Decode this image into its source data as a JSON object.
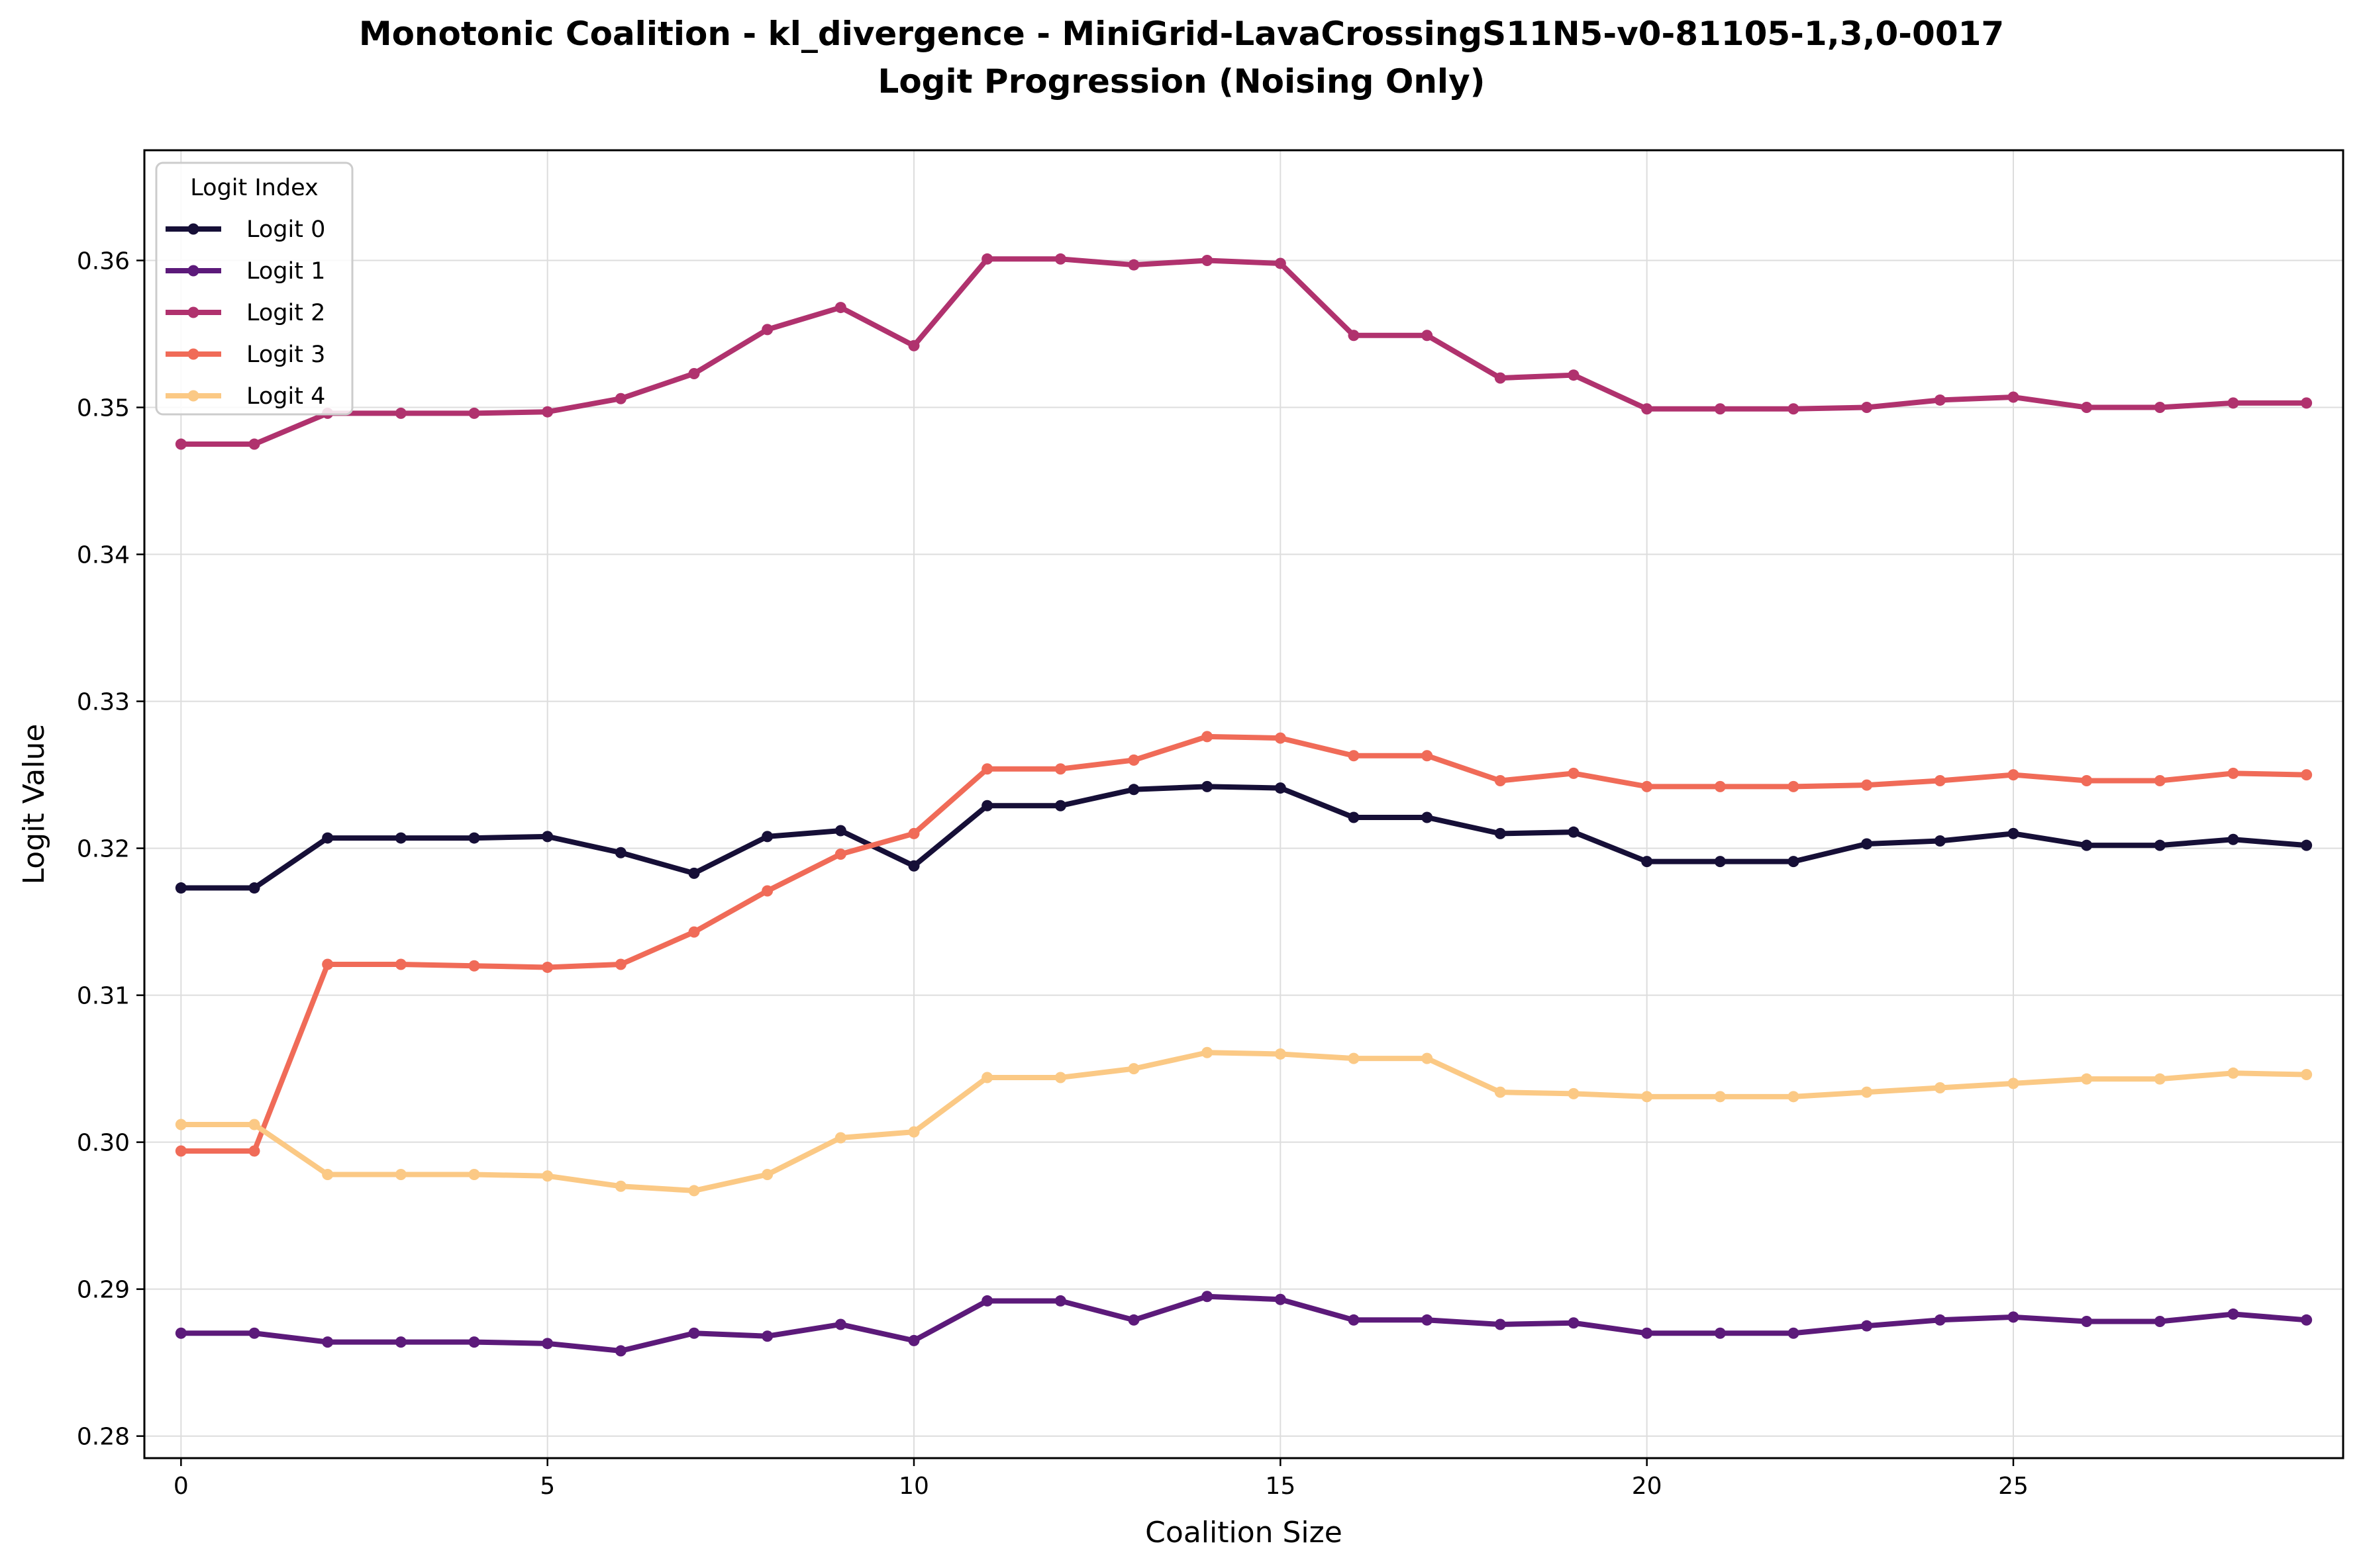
{
  "chart_data": {
    "type": "line",
    "title": "Monotonic Coalition - kl_divergence - MiniGrid-LavaCrossingS11N5-v0-81105-1,3,0-0017",
    "subtitle": "Logit Progression (Noising Only)",
    "xlabel": "Coalition Size",
    "ylabel": "Logit Value",
    "xlim": [
      -0.5,
      29.5
    ],
    "ylim": [
      0.2785,
      0.3675
    ],
    "xticks": [
      0,
      5,
      10,
      15,
      20,
      25
    ],
    "yticks": [
      0.28,
      0.29,
      0.3,
      0.31,
      0.32,
      0.33,
      0.34,
      0.35,
      0.36
    ],
    "ytick_labels": [
      "0.28",
      "0.29",
      "0.30",
      "0.31",
      "0.32",
      "0.33",
      "0.34",
      "0.35",
      "0.36"
    ],
    "grid": true,
    "legend": {
      "title": "Logit Index",
      "position": "top-left"
    },
    "x": [
      0,
      1,
      2,
      3,
      4,
      5,
      6,
      7,
      8,
      9,
      10,
      11,
      12,
      13,
      14,
      15,
      16,
      17,
      18,
      19,
      20,
      21,
      22,
      23,
      24,
      25,
      26,
      27,
      28,
      29
    ],
    "series": [
      {
        "name": "Logit 0",
        "color": "#160f37",
        "values": [
          0.3173,
          0.3173,
          0.3207,
          0.3207,
          0.3207,
          0.3208,
          0.3197,
          0.3183,
          0.3208,
          0.3212,
          0.3188,
          0.3229,
          0.3229,
          0.324,
          0.3242,
          0.3241,
          0.3221,
          0.3221,
          0.321,
          0.3211,
          0.3191,
          0.3191,
          0.3191,
          0.3203,
          0.3205,
          0.321,
          0.3202,
          0.3202,
          0.3206,
          0.3202
        ]
      },
      {
        "name": "Logit 1",
        "color": "#5c1a7a",
        "values": [
          0.287,
          0.287,
          0.2864,
          0.2864,
          0.2864,
          0.2863,
          0.2858,
          0.287,
          0.2868,
          0.2876,
          0.2865,
          0.2892,
          0.2892,
          0.2879,
          0.2895,
          0.2893,
          0.2879,
          0.2879,
          0.2876,
          0.2877,
          0.287,
          0.287,
          0.287,
          0.2875,
          0.2879,
          0.2881,
          0.2878,
          0.2878,
          0.2883,
          0.2879
        ]
      },
      {
        "name": "Logit 2",
        "color": "#b0326e",
        "values": [
          0.3475,
          0.3475,
          0.3496,
          0.3496,
          0.3496,
          0.3497,
          0.3506,
          0.3523,
          0.3553,
          0.3568,
          0.3542,
          0.3601,
          0.3601,
          0.3597,
          0.36,
          0.3598,
          0.3549,
          0.3549,
          0.352,
          0.3522,
          0.3499,
          0.3499,
          0.3499,
          0.35,
          0.3505,
          0.3507,
          0.35,
          0.35,
          0.3503,
          0.3503
        ]
      },
      {
        "name": "Logit 3",
        "color": "#f06b58",
        "values": [
          0.2994,
          0.2994,
          0.3121,
          0.3121,
          0.312,
          0.3119,
          0.3121,
          0.3143,
          0.3171,
          0.3196,
          0.321,
          0.3254,
          0.3254,
          0.326,
          0.3276,
          0.3275,
          0.3263,
          0.3263,
          0.3246,
          0.3251,
          0.3242,
          0.3242,
          0.3242,
          0.3243,
          0.3246,
          0.325,
          0.3246,
          0.3246,
          0.3251,
          0.325
        ]
      },
      {
        "name": "Logit 4",
        "color": "#fbc985",
        "values": [
          0.3012,
          0.3012,
          0.2978,
          0.2978,
          0.2978,
          0.2977,
          0.297,
          0.2967,
          0.2978,
          0.3003,
          0.3007,
          0.3044,
          0.3044,
          0.305,
          0.3061,
          0.306,
          0.3057,
          0.3057,
          0.3034,
          0.3033,
          0.3031,
          0.3031,
          0.3031,
          0.3034,
          0.3037,
          0.304,
          0.3043,
          0.3043,
          0.3047,
          0.3046
        ]
      }
    ]
  }
}
